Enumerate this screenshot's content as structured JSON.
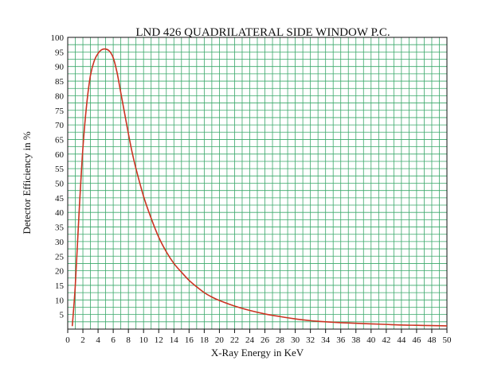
{
  "chart_data": {
    "type": "line",
    "title": "LND 426 QUADRILATERAL SIDE WINDOW P.C.",
    "xlabel": "X-Ray Energy in KeV",
    "ylabel": "Detector Efficiency in %",
    "xlim": [
      0,
      50
    ],
    "ylim": [
      0,
      100
    ],
    "grid": true,
    "x_minor_step": 1,
    "y_minor_step": 2.5,
    "x_ticks": [
      "0",
      "2",
      "4",
      "6",
      "8",
      "10",
      "12",
      "14",
      "16",
      "18",
      "20",
      "22",
      "24",
      "26",
      "28",
      "30",
      "32",
      "34",
      "36",
      "38",
      "40",
      "42",
      "44",
      "46",
      "48",
      "50"
    ],
    "y_ticks": [
      "5",
      "10",
      "15",
      "20",
      "25",
      "30",
      "35",
      "40",
      "45",
      "50",
      "55",
      "60",
      "65",
      "70",
      "75",
      "80",
      "85",
      "90",
      "95",
      "100"
    ],
    "grid_color": "#3aa86a",
    "line_color": "#cc3322",
    "series": [
      {
        "points": [
          [
            0.6,
            1
          ],
          [
            1,
            15
          ],
          [
            1.5,
            40
          ],
          [
            2,
            62
          ],
          [
            2.5,
            77
          ],
          [
            3,
            87
          ],
          [
            3.5,
            92
          ],
          [
            4,
            94.5
          ],
          [
            4.5,
            95.8
          ],
          [
            5,
            96
          ],
          [
            5.5,
            95.3
          ],
          [
            6,
            93
          ],
          [
            6.5,
            88
          ],
          [
            7,
            81
          ],
          [
            7.5,
            74
          ],
          [
            8,
            67
          ],
          [
            8.5,
            60.5
          ],
          [
            9,
            55
          ],
          [
            10,
            45.5
          ],
          [
            11,
            38
          ],
          [
            12,
            31.5
          ],
          [
            13,
            26.5
          ],
          [
            14,
            22.5
          ],
          [
            15,
            19.5
          ],
          [
            16,
            16.7
          ],
          [
            17,
            14.5
          ],
          [
            18,
            12.5
          ],
          [
            19,
            11
          ],
          [
            20,
            9.8
          ],
          [
            22,
            7.9
          ],
          [
            24,
            6.4
          ],
          [
            26,
            5.2
          ],
          [
            28,
            4.3
          ],
          [
            30,
            3.5
          ],
          [
            32,
            2.9
          ],
          [
            34,
            2.5
          ],
          [
            36,
            2.2
          ],
          [
            38,
            2.0
          ],
          [
            40,
            1.8
          ],
          [
            42,
            1.6
          ],
          [
            44,
            1.4
          ],
          [
            46,
            1.3
          ],
          [
            48,
            1.2
          ],
          [
            50,
            1.1
          ]
        ]
      }
    ]
  }
}
